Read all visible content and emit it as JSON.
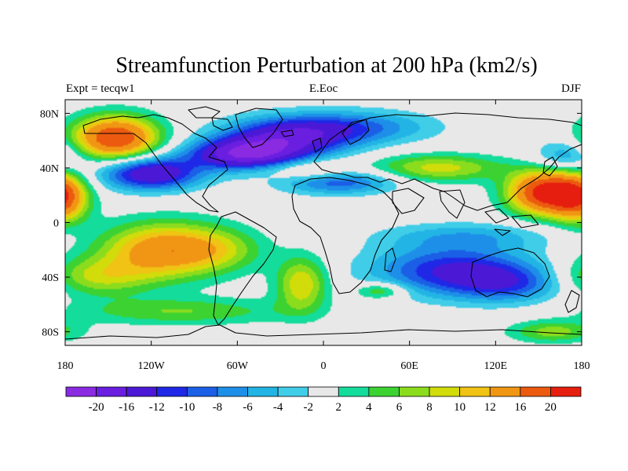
{
  "chart_data": {
    "type": "heatmap",
    "title": "Streamfunction Perturbation at 200 hPa (km2/s)",
    "left_label": "Expt = tecqw1",
    "center_label": "E.Eoc",
    "right_label": "DJF",
    "x_range": [
      -180,
      180
    ],
    "y_range": [
      -90,
      90
    ],
    "x_ticks": [
      {
        "value": -180,
        "label": "180"
      },
      {
        "value": -120,
        "label": "120W"
      },
      {
        "value": -60,
        "label": "60W"
      },
      {
        "value": 0,
        "label": "0"
      },
      {
        "value": 60,
        "label": "60E"
      },
      {
        "value": 120,
        "label": "120E"
      },
      {
        "value": 180,
        "label": "180"
      }
    ],
    "y_ticks": [
      {
        "value": 80,
        "label": "80N"
      },
      {
        "value": 40,
        "label": "40N"
      },
      {
        "value": 0,
        "label": "0"
      },
      {
        "value": -40,
        "label": "40S"
      },
      {
        "value": -80,
        "label": "80S"
      }
    ],
    "contour_levels": [
      -20,
      -16,
      -12,
      -10,
      -8,
      -6,
      -4,
      -2,
      2,
      4,
      6,
      8,
      10,
      12,
      16,
      20
    ],
    "colorbar_colors": [
      "#8A2BE2",
      "#6A1EE0",
      "#4B19D6",
      "#1E28E6",
      "#1A5FE6",
      "#1E8FE8",
      "#22B4E4",
      "#40CDE8",
      "#E8E8E8",
      "#14DC9A",
      "#3CD232",
      "#8CDC1E",
      "#D2DC0A",
      "#F0C314",
      "#F09614",
      "#EB5A0F",
      "#E61E0F"
    ],
    "features": [
      {
        "lon": -145,
        "lat": 62,
        "value": 20,
        "lon_radius": 30,
        "lat_radius": 16
      },
      {
        "lon": -120,
        "lat": 36,
        "value": -16,
        "lon_radius": 34,
        "lat_radius": 12
      },
      {
        "lon": -55,
        "lat": 50,
        "value": -18,
        "lon_radius": 38,
        "lat_radius": 11
      },
      {
        "lon": -25,
        "lat": 62,
        "value": -14,
        "lon_radius": 45,
        "lat_radius": 14
      },
      {
        "lon": 20,
        "lat": 70,
        "value": -8,
        "lon_radius": 55,
        "lat_radius": 12
      },
      {
        "lon": 10,
        "lat": 30,
        "value": -10,
        "lon_radius": 40,
        "lat_radius": 9
      },
      {
        "lon": -10,
        "lat": 38,
        "value": 6,
        "lon_radius": 30,
        "lat_radius": 8
      },
      {
        "lon": 80,
        "lat": 40,
        "value": 9,
        "lon_radius": 45,
        "lat_radius": 10
      },
      {
        "lon": 155,
        "lat": 22,
        "value": 22,
        "lon_radius": 26,
        "lat_radius": 16
      },
      {
        "lon": 170,
        "lat": 48,
        "value": -7,
        "lon_radius": 22,
        "lat_radius": 12
      },
      {
        "lon": -182,
        "lat": 18,
        "value": 14,
        "lon_radius": 18,
        "lat_radius": 18
      },
      {
        "lon": -110,
        "lat": -20,
        "value": 15,
        "lon_radius": 45,
        "lat_radius": 20
      },
      {
        "lon": -160,
        "lat": -40,
        "value": 8,
        "lon_radius": 40,
        "lat_radius": 14
      },
      {
        "lon": -100,
        "lat": -65,
        "value": 6,
        "lon_radius": 75,
        "lat_radius": 10
      },
      {
        "lon": -15,
        "lat": -45,
        "value": 10,
        "lon_radius": 18,
        "lat_radius": 20
      },
      {
        "lon": 40,
        "lat": -50,
        "value": 7,
        "lon_radius": 18,
        "lat_radius": 6
      },
      {
        "lon": 90,
        "lat": -35,
        "value": -12,
        "lon_radius": 55,
        "lat_radius": 18
      },
      {
        "lon": 130,
        "lat": -45,
        "value": -8,
        "lon_radius": 40,
        "lat_radius": 14
      },
      {
        "lon": 100,
        "lat": -10,
        "value": -5,
        "lon_radius": 60,
        "lat_radius": 10
      },
      {
        "lon": 160,
        "lat": -80,
        "value": 7,
        "lon_radius": 30,
        "lat_radius": 8
      },
      {
        "lon": -70,
        "lat": -20,
        "value": 4,
        "lon_radius": 30,
        "lat_radius": 15
      }
    ]
  }
}
